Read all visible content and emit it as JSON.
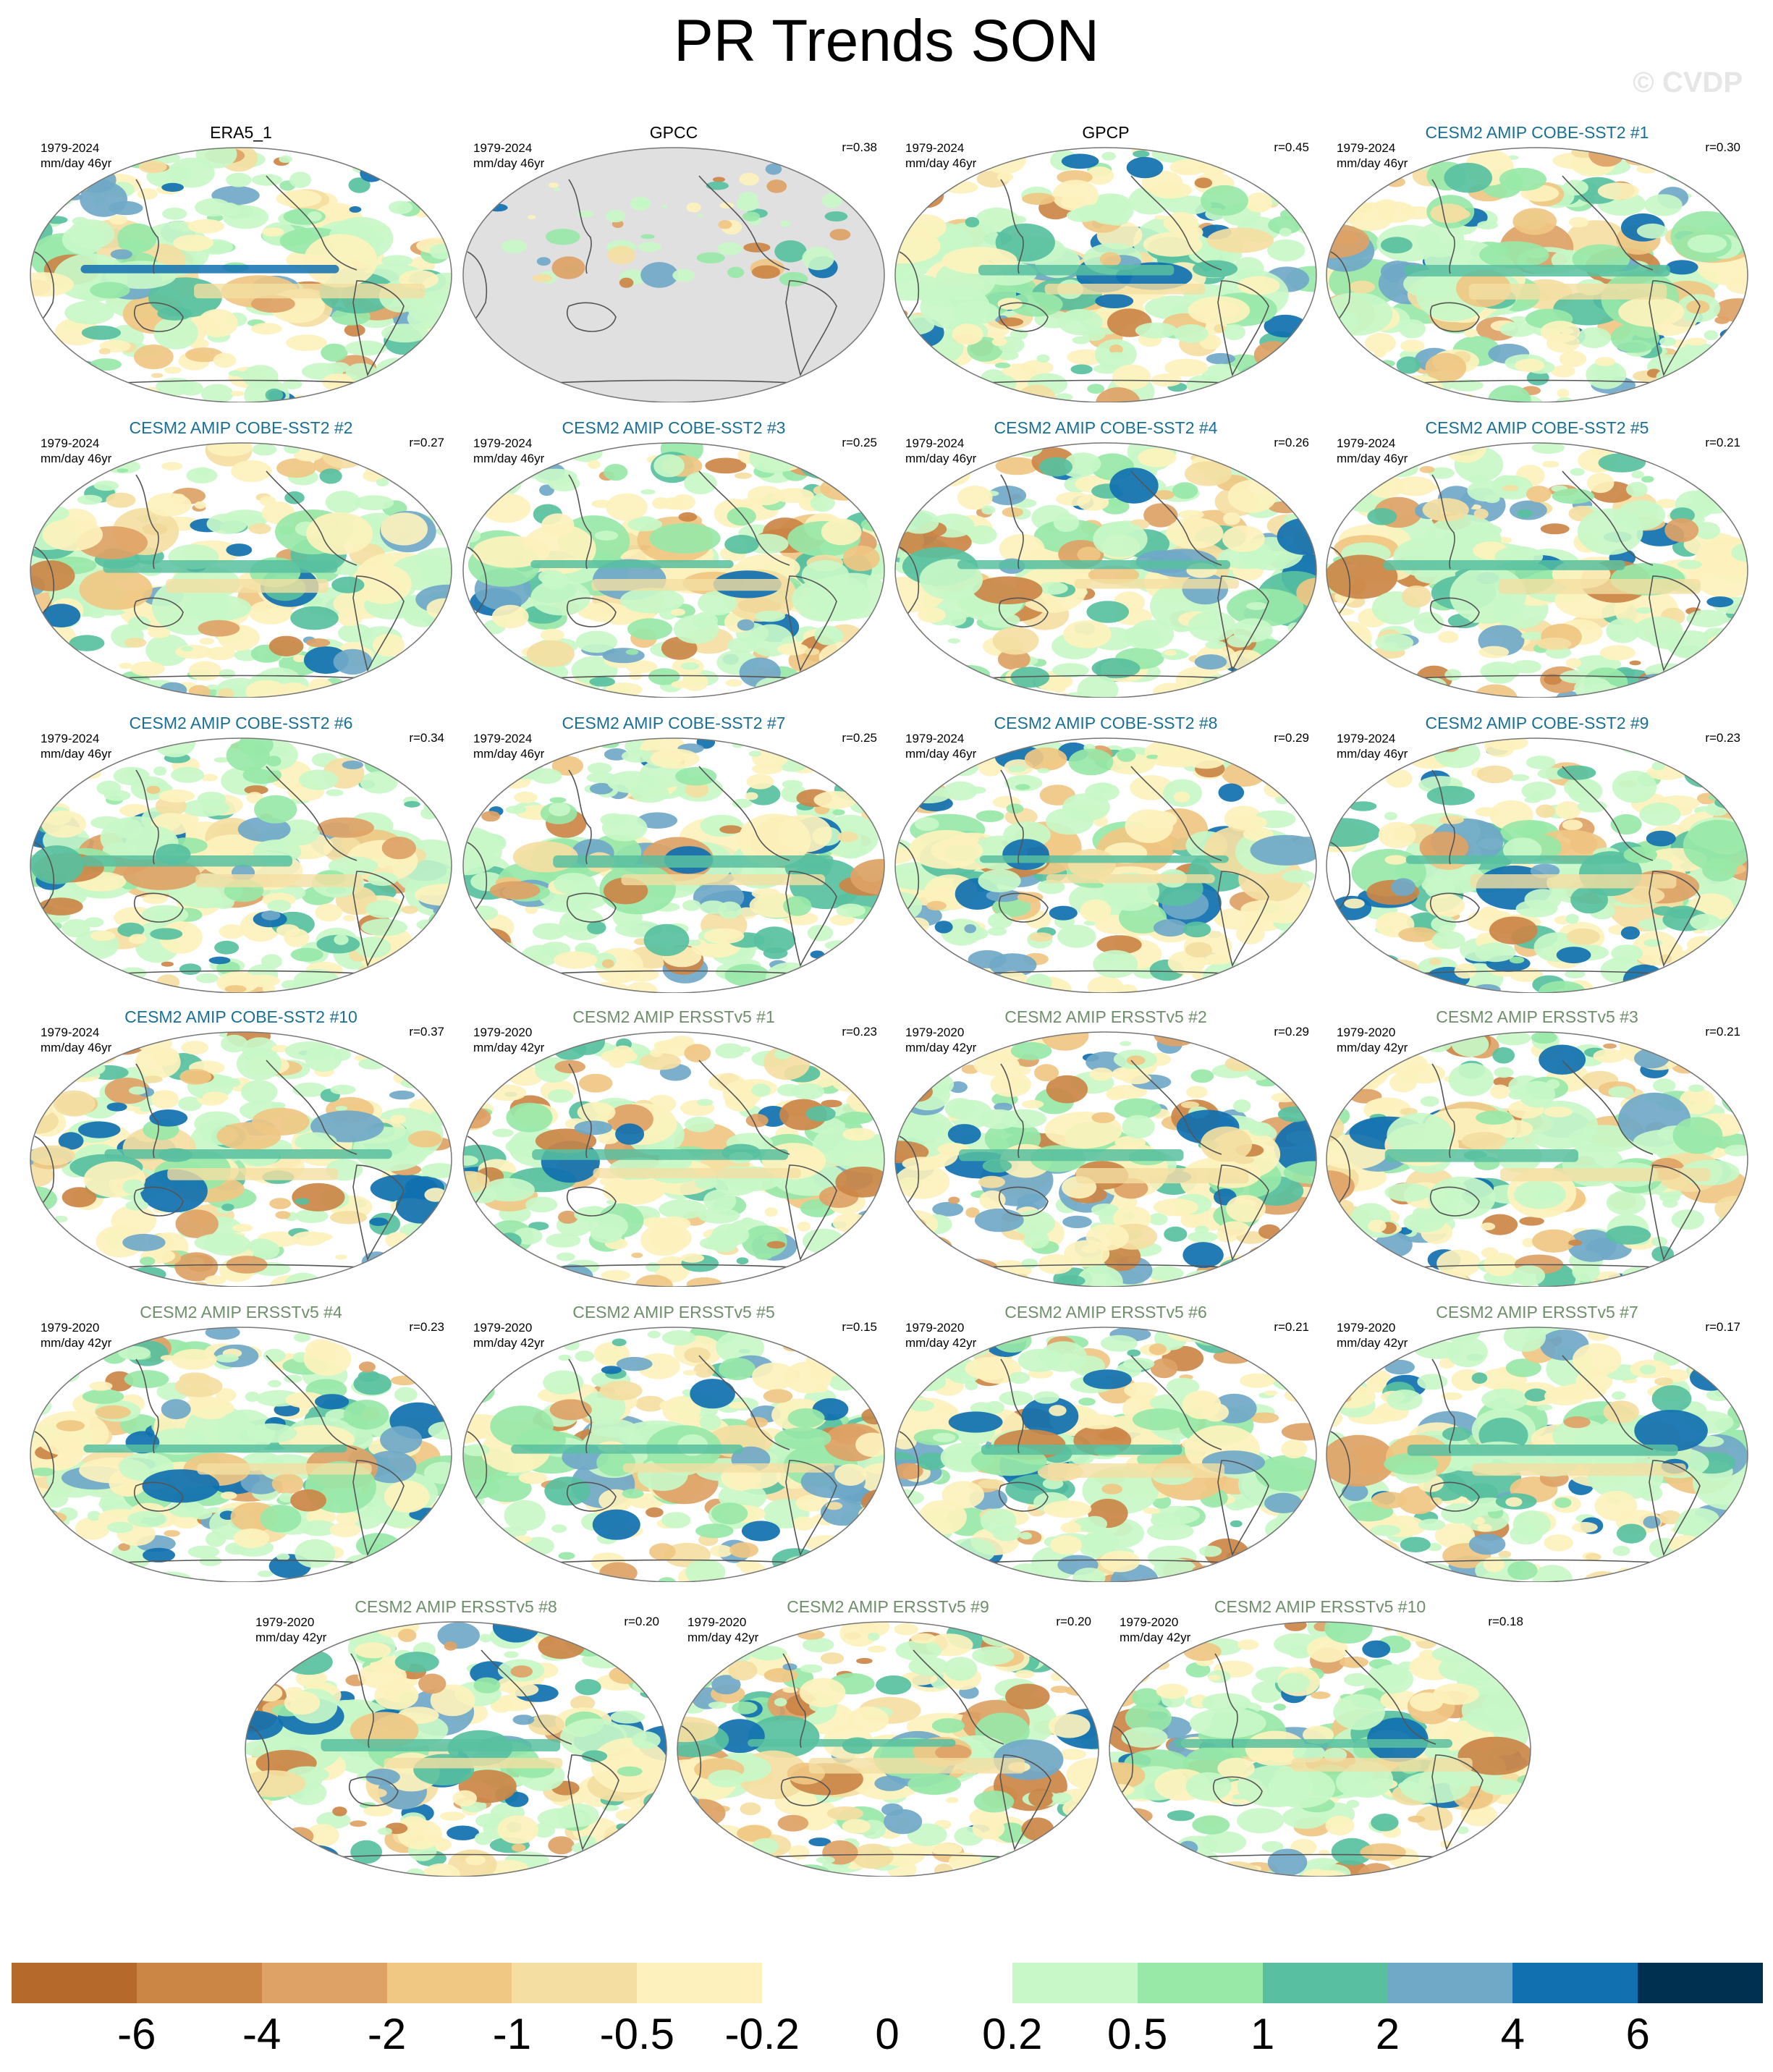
{
  "title": "PR Trends SON",
  "watermark": "© CVDP",
  "panels": [
    {
      "name": "ERA5_1",
      "kind": "obs",
      "period": "1979-2024",
      "units": "mm/day 46yr",
      "r": ""
    },
    {
      "name": "GPCC",
      "kind": "obs",
      "period": "1979-2024",
      "units": "mm/day 46yr",
      "r": "r=0.38",
      "masked": true
    },
    {
      "name": "GPCP",
      "kind": "obs",
      "period": "1979-2024",
      "units": "mm/day 46yr",
      "r": "r=0.45"
    },
    {
      "name": "CESM2 AMIP COBE-SST2 #1",
      "kind": "cobe",
      "period": "1979-2024",
      "units": "mm/day 46yr",
      "r": "r=0.30"
    },
    {
      "name": "CESM2 AMIP COBE-SST2 #2",
      "kind": "cobe",
      "period": "1979-2024",
      "units": "mm/day 46yr",
      "r": "r=0.27"
    },
    {
      "name": "CESM2 AMIP COBE-SST2 #3",
      "kind": "cobe",
      "period": "1979-2024",
      "units": "mm/day 46yr",
      "r": "r=0.25"
    },
    {
      "name": "CESM2 AMIP COBE-SST2 #4",
      "kind": "cobe",
      "period": "1979-2024",
      "units": "mm/day 46yr",
      "r": "r=0.26"
    },
    {
      "name": "CESM2 AMIP COBE-SST2 #5",
      "kind": "cobe",
      "period": "1979-2024",
      "units": "mm/day 46yr",
      "r": "r=0.21"
    },
    {
      "name": "CESM2 AMIP COBE-SST2 #6",
      "kind": "cobe",
      "period": "1979-2024",
      "units": "mm/day 46yr",
      "r": "r=0.34"
    },
    {
      "name": "CESM2 AMIP COBE-SST2 #7",
      "kind": "cobe",
      "period": "1979-2024",
      "units": "mm/day 46yr",
      "r": "r=0.25"
    },
    {
      "name": "CESM2 AMIP COBE-SST2 #8",
      "kind": "cobe",
      "period": "1979-2024",
      "units": "mm/day 46yr",
      "r": "r=0.29"
    },
    {
      "name": "CESM2 AMIP COBE-SST2 #9",
      "kind": "cobe",
      "period": "1979-2024",
      "units": "mm/day 46yr",
      "r": "r=0.23"
    },
    {
      "name": "CESM2 AMIP COBE-SST2 #10",
      "kind": "cobe",
      "period": "1979-2024",
      "units": "mm/day 46yr",
      "r": "r=0.37"
    },
    {
      "name": "CESM2 AMIP ERSSTv5 #1",
      "kind": "ersst",
      "period": "1979-2020",
      "units": "mm/day 42yr",
      "r": "r=0.23"
    },
    {
      "name": "CESM2 AMIP ERSSTv5 #2",
      "kind": "ersst",
      "period": "1979-2020",
      "units": "mm/day 42yr",
      "r": "r=0.29"
    },
    {
      "name": "CESM2 AMIP ERSSTv5 #3",
      "kind": "ersst",
      "period": "1979-2020",
      "units": "mm/day 42yr",
      "r": "r=0.21"
    },
    {
      "name": "CESM2 AMIP ERSSTv5 #4",
      "kind": "ersst",
      "period": "1979-2020",
      "units": "mm/day 42yr",
      "r": "r=0.23"
    },
    {
      "name": "CESM2 AMIP ERSSTv5 #5",
      "kind": "ersst",
      "period": "1979-2020",
      "units": "mm/day 42yr",
      "r": "r=0.15"
    },
    {
      "name": "CESM2 AMIP ERSSTv5 #6",
      "kind": "ersst",
      "period": "1979-2020",
      "units": "mm/day 42yr",
      "r": "r=0.21"
    },
    {
      "name": "CESM2 AMIP ERSSTv5 #7",
      "kind": "ersst",
      "period": "1979-2020",
      "units": "mm/day 42yr",
      "r": "r=0.17"
    },
    {
      "name": "CESM2 AMIP ERSSTv5 #8",
      "kind": "ersst",
      "period": "1979-2020",
      "units": "mm/day 42yr",
      "r": "r=0.20"
    },
    {
      "name": "CESM2 AMIP ERSSTv5 #9",
      "kind": "ersst",
      "period": "1979-2020",
      "units": "mm/day 42yr",
      "r": "r=0.20"
    },
    {
      "name": "CESM2 AMIP ERSSTv5 #10",
      "kind": "ersst",
      "period": "1979-2020",
      "units": "mm/day 42yr",
      "r": "r=0.18"
    }
  ],
  "colors": {
    "obs_title": "#000000",
    "cobe_title": "#1a6f96",
    "ersst_title": "#6e8f6a",
    "land_mask": "#e0e0e0",
    "coast": "#555555"
  },
  "colorbar": {
    "colors": [
      "#b5692b",
      "#cb8646",
      "#dea266",
      "#f0c783",
      "#f4dea2",
      "#fdf2bd",
      "#ffffff",
      "#ffffff",
      "#c8f7c8",
      "#98e8a8",
      "#58c0a0",
      "#70a8c8",
      "#1070b0",
      "#003050"
    ],
    "labels": [
      "-6",
      "-4",
      "-2",
      "-1",
      "-0.5",
      "-0.2",
      "0",
      "0.2",
      "0.5",
      "1",
      "2",
      "4",
      "6"
    ]
  }
}
